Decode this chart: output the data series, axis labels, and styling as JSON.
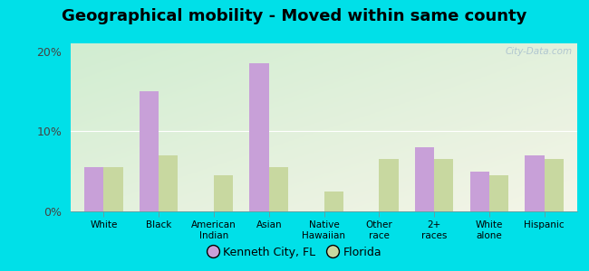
{
  "title": "Geographical mobility - Moved within same county",
  "categories": [
    "White",
    "Black",
    "American\nIndian",
    "Asian",
    "Native\nHawaiian",
    "Other\nrace",
    "2+\nraces",
    "White\nalone",
    "Hispanic"
  ],
  "kenneth_city": [
    5.5,
    15.0,
    0.0,
    18.5,
    0.0,
    0.0,
    8.0,
    5.0,
    7.0
  ],
  "florida": [
    5.5,
    7.0,
    4.5,
    5.5,
    2.5,
    6.5,
    6.5,
    4.5,
    6.5
  ],
  "kc_color": "#c8a0d8",
  "fl_color": "#c8d8a0",
  "background_outer": "#00e0e8",
  "background_inner": "#e8f5e0",
  "ylim": [
    0,
    21
  ],
  "yticks": [
    0,
    10,
    20
  ],
  "ytick_labels": [
    "0%",
    "10%",
    "20%"
  ],
  "bar_width": 0.35,
  "legend_kc": "Kenneth City, FL",
  "legend_fl": "Florida",
  "title_fontsize": 13,
  "watermark": "City-Data.com"
}
